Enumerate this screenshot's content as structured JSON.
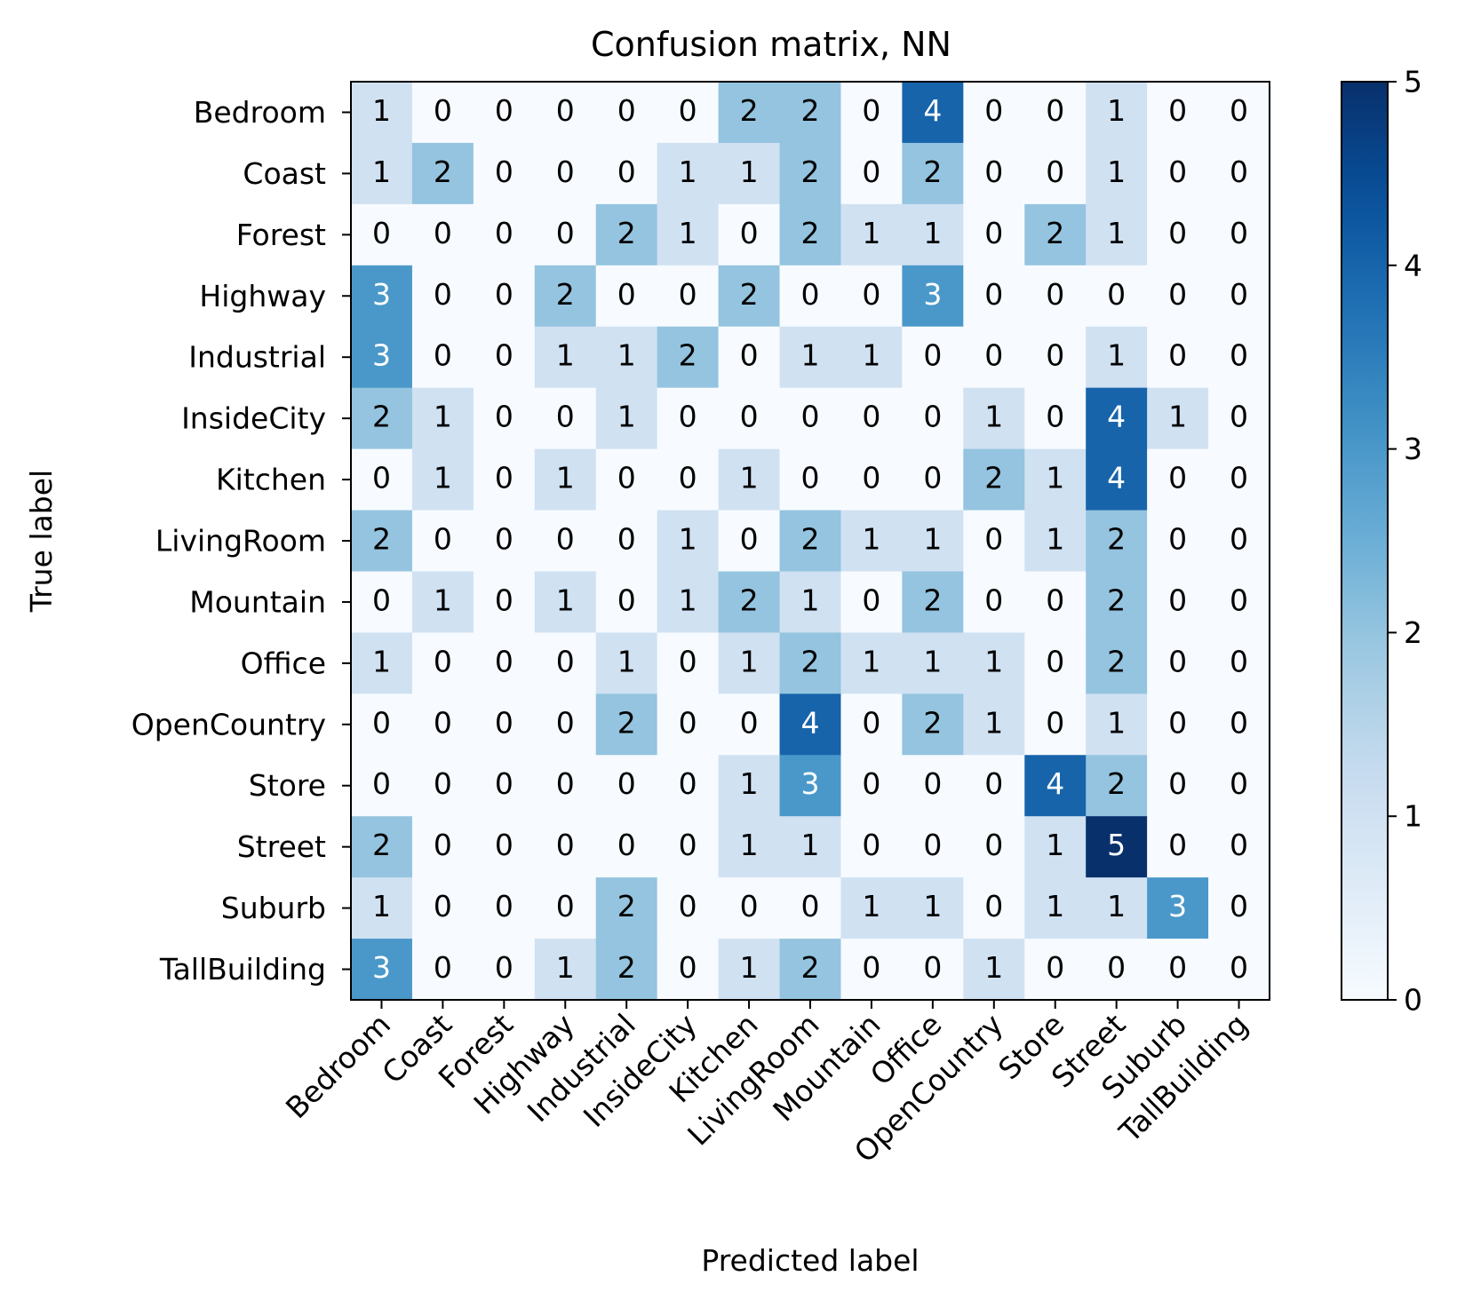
{
  "chart_data": {
    "type": "heatmap",
    "title": "Confusion matrix, NN",
    "xlabel": "Predicted label",
    "ylabel": "True label",
    "x_categories": [
      "Bedroom",
      "Coast",
      "Forest",
      "Highway",
      "Industrial",
      "InsideCity",
      "Kitchen",
      "LivingRoom",
      "Mountain",
      "Office",
      "OpenCountry",
      "Store",
      "Street",
      "Suburb",
      "TallBuilding"
    ],
    "y_categories": [
      "Bedroom",
      "Coast",
      "Forest",
      "Highway",
      "Industrial",
      "InsideCity",
      "Kitchen",
      "LivingRoom",
      "Mountain",
      "Office",
      "OpenCountry",
      "Store",
      "Street",
      "Suburb",
      "TallBuilding"
    ],
    "values": [
      [
        1,
        0,
        0,
        0,
        0,
        0,
        2,
        2,
        0,
        4,
        0,
        0,
        1,
        0,
        0
      ],
      [
        1,
        2,
        0,
        0,
        0,
        1,
        1,
        2,
        0,
        2,
        0,
        0,
        1,
        0,
        0
      ],
      [
        0,
        0,
        0,
        0,
        2,
        1,
        0,
        2,
        1,
        1,
        0,
        2,
        1,
        0,
        0
      ],
      [
        3,
        0,
        0,
        2,
        0,
        0,
        2,
        0,
        0,
        3,
        0,
        0,
        0,
        0,
        0
      ],
      [
        3,
        0,
        0,
        1,
        1,
        2,
        0,
        1,
        1,
        0,
        0,
        0,
        1,
        0,
        0
      ],
      [
        2,
        1,
        0,
        0,
        1,
        0,
        0,
        0,
        0,
        0,
        1,
        0,
        4,
        1,
        0
      ],
      [
        0,
        1,
        0,
        1,
        0,
        0,
        1,
        0,
        0,
        0,
        2,
        1,
        4,
        0,
        0
      ],
      [
        2,
        0,
        0,
        0,
        0,
        1,
        0,
        2,
        1,
        1,
        0,
        1,
        2,
        0,
        0
      ],
      [
        0,
        1,
        0,
        1,
        0,
        1,
        2,
        1,
        0,
        2,
        0,
        0,
        2,
        0,
        0
      ],
      [
        1,
        0,
        0,
        0,
        1,
        0,
        1,
        2,
        1,
        1,
        1,
        0,
        2,
        0,
        0
      ],
      [
        0,
        0,
        0,
        0,
        2,
        0,
        0,
        4,
        0,
        2,
        1,
        0,
        1,
        0,
        0
      ],
      [
        0,
        0,
        0,
        0,
        0,
        0,
        1,
        3,
        0,
        0,
        0,
        4,
        2,
        0,
        0
      ],
      [
        2,
        0,
        0,
        0,
        0,
        0,
        1,
        1,
        0,
        0,
        0,
        1,
        5,
        0,
        0
      ],
      [
        1,
        0,
        0,
        0,
        2,
        0,
        0,
        0,
        1,
        1,
        0,
        1,
        1,
        3,
        0
      ],
      [
        3,
        0,
        0,
        1,
        2,
        0,
        1,
        2,
        0,
        0,
        1,
        0,
        0,
        0,
        0
      ]
    ],
    "colormap": "Blues",
    "colorbar": {
      "min": 0,
      "max": 5,
      "ticks": [
        "0",
        "1",
        "2",
        "3",
        "4",
        "5"
      ]
    },
    "colors": {
      "low": "#f7fbff",
      "high": "#08306b",
      "text_dark": "#000000",
      "text_light": "#ffffff"
    }
  }
}
